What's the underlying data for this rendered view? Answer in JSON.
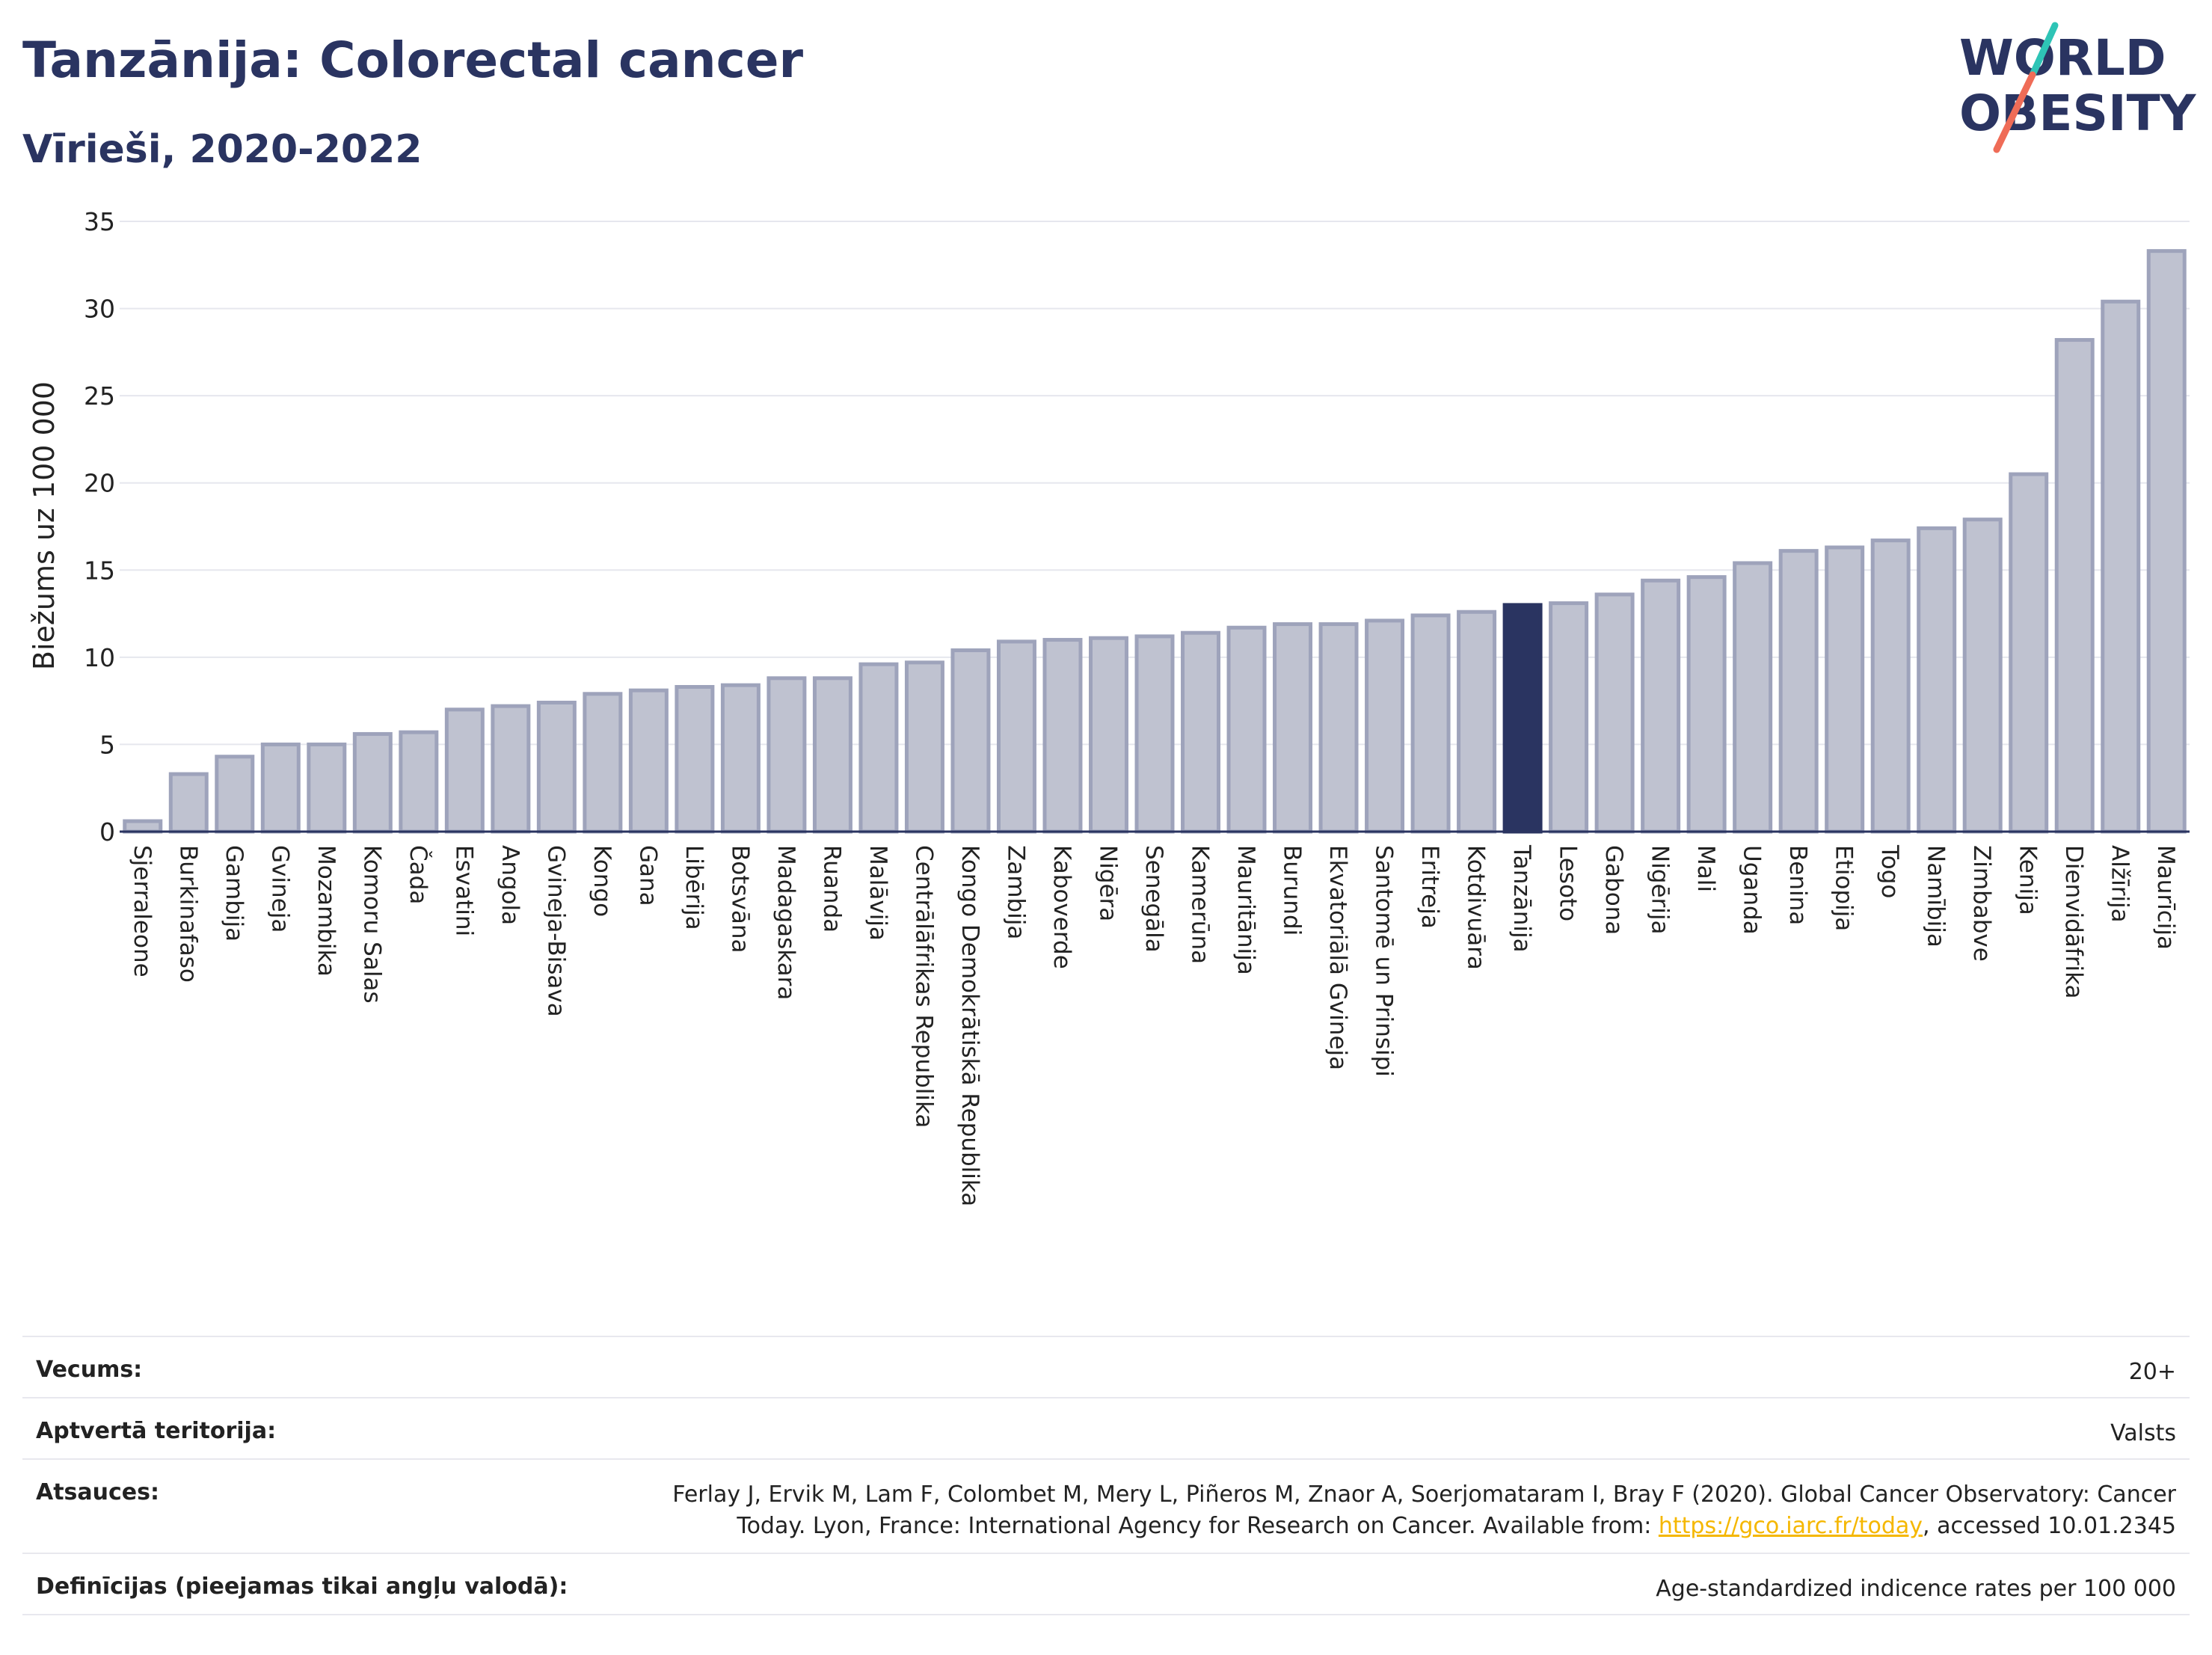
{
  "header": {
    "title": "Tanzānija: Colorectal cancer",
    "subtitle": "Vīrieši, 2020-2022"
  },
  "logo": {
    "line1": "WORLD",
    "line2": "OBESITY",
    "colors": [
      "#2a3461",
      "#2ec4b6",
      "#ef6c57"
    ]
  },
  "chart_data": {
    "type": "bar",
    "ylabel": "Biežums uz 100 000",
    "ylim": [
      0,
      35
    ],
    "yticks": [
      0,
      5,
      10,
      15,
      20,
      25,
      30,
      35
    ],
    "highlight": "Tanzānija",
    "colors": {
      "bar": "#bfc2d0",
      "bar_stroke": "#9ea3bb",
      "highlight": "#2a3461",
      "grid": "#e6e7ee"
    },
    "categories": [
      "Sjerraleone",
      "Burkinafaso",
      "Gambija",
      "Gvineja",
      "Mozambika",
      "Komoru Salas",
      "Čada",
      "Esvatini",
      "Angola",
      "Gvineja-Bisava",
      "Kongo",
      "Gana",
      "Libērija",
      "Botsvāna",
      "Madagaskara",
      "Ruanda",
      "Malāvija",
      "Centrālāfrikas Republika",
      "Kongo Demokrātiskā Republika",
      "Zambija",
      "Kaboverde",
      "Nigēra",
      "Senegāla",
      "Kamerūna",
      "Mauritānija",
      "Burundi",
      "Ekvatoriālā Gvineja",
      "Santomē un Prinsipi",
      "Eritreja",
      "Kotdivuāra",
      "Tanzānija",
      "Lesoto",
      "Gabona",
      "Nigērija",
      "Mali",
      "Uganda",
      "Benina",
      "Etiopija",
      "Togo",
      "Namībija",
      "Zimbabve",
      "Kenija",
      "Dienvidāfrika",
      "Alžīrija",
      "Maurīcija"
    ],
    "values": [
      0.6,
      3.3,
      4.3,
      5.0,
      5.0,
      5.6,
      5.7,
      7.0,
      7.2,
      7.4,
      7.9,
      8.1,
      8.3,
      8.4,
      8.8,
      8.8,
      9.6,
      9.7,
      10.4,
      10.9,
      11.0,
      11.1,
      11.2,
      11.4,
      11.7,
      11.9,
      11.9,
      12.1,
      12.4,
      12.6,
      13.0,
      13.1,
      13.6,
      14.4,
      14.6,
      15.4,
      16.1,
      16.3,
      16.7,
      17.4,
      17.9,
      20.5,
      28.2,
      30.4,
      33.3
    ]
  },
  "info": {
    "age_label": "Vecums:",
    "age_value": "20+",
    "coverage_label": "Aptvertā teritorija:",
    "coverage_value": "Valsts",
    "refs_label": "Atsauces:",
    "refs_line1": "Ferlay J, Ervik M, Lam F, Colombet M, Mery L, Piñeros M, Znaor A, Soerjomataram I, Bray F (2020). Global Cancer Observatory: Cancer",
    "refs_line2_pre": "Today. Lyon, France: International Agency for Research on Cancer. Available from: ",
    "refs_link": "https://gco.iarc.fr/today",
    "refs_line2_post": ", accessed 10.01.2345",
    "defs_label": "Definīcijas (pieejamas tikai angļu valodā):",
    "defs_value": "Age-standardized indicence rates per 100 000"
  }
}
